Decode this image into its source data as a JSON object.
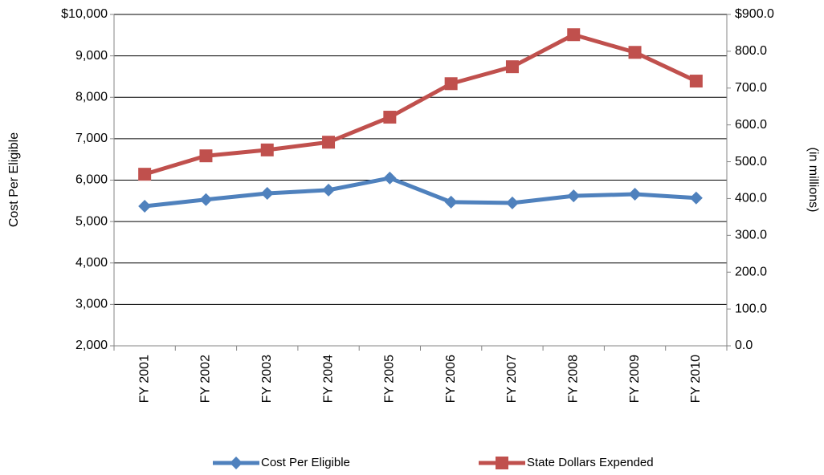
{
  "chart_data": {
    "type": "line",
    "y_label": "Cost Per Eligible",
    "y2_label": "(in millions)",
    "categories": [
      "FY 2001",
      "FY 2002",
      "FY 2003",
      "FY 2004",
      "FY 2005",
      "FY 2006",
      "FY 2007",
      "FY 2008",
      "FY 2009",
      "FY 2010"
    ],
    "series": [
      {
        "name": "Cost Per Eligible",
        "color": "#4f81bd",
        "marker": "diamond",
        "values": [
          5370,
          5530,
          5680,
          5760,
          6050,
          5470,
          5450,
          5620,
          5660,
          5570
        ]
      },
      {
        "name": "State Dollars Expended",
        "color": "#c0504d",
        "marker": "square",
        "axis": "y2",
        "values": [
          466,
          516,
          532,
          553,
          621,
          712,
          758,
          845,
          797,
          719
        ]
      }
    ],
    "ylim": [
      2000,
      10000
    ],
    "yticks": [
      {
        "value": 2000,
        "label": "2,000"
      },
      {
        "value": 3000,
        "label": "3,000"
      },
      {
        "value": 4000,
        "label": "4,000"
      },
      {
        "value": 5000,
        "label": "5,000"
      },
      {
        "value": 6000,
        "label": "6,000"
      },
      {
        "value": 7000,
        "label": "7,000"
      },
      {
        "value": 8000,
        "label": "8,000"
      },
      {
        "value": 9000,
        "label": "9,000"
      },
      {
        "value": 10000,
        "label": "$10,000"
      }
    ],
    "y2lim": [
      0,
      900
    ],
    "y2ticks": [
      {
        "value": 0,
        "label": "0.0"
      },
      {
        "value": 100,
        "label": "100.0"
      },
      {
        "value": 200,
        "label": "200.0"
      },
      {
        "value": 300,
        "label": "300.0"
      },
      {
        "value": 400,
        "label": "400.0"
      },
      {
        "value": 500,
        "label": "500.0"
      },
      {
        "value": 600,
        "label": "600.0"
      },
      {
        "value": 700,
        "label": "700.0"
      },
      {
        "value": 800,
        "label": "800.0"
      },
      {
        "value": 900,
        "label": "$900.0"
      }
    ],
    "grid": true,
    "legend": "bottom"
  }
}
